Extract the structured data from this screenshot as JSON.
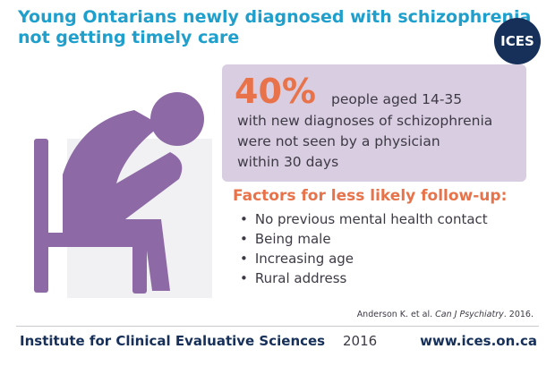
{
  "header": {
    "title_lines": [
      "Young Ontarians newly diagnosed with schizophrenia",
      "not getting timely care"
    ],
    "logo": "ICES"
  },
  "stat": {
    "figure": "40%",
    "lines": [
      "people aged 14-35",
      "with new diagnoses of schizophrenia",
      "were not seen by a physician",
      "within 30 days"
    ]
  },
  "factors": {
    "heading": "Factors for less likely follow-up:",
    "items": [
      "No previous mental health contact",
      "Being male",
      "Increasing age",
      "Rural address"
    ]
  },
  "citation": {
    "authors": "Anderson K. et al.",
    "journal": "Can J Psychiatry",
    "rest": ". 2016."
  },
  "footer": {
    "organization": "Institute for Clinical Evaluative Sciences",
    "year": "2016",
    "url": "www.ices.on.ca"
  }
}
